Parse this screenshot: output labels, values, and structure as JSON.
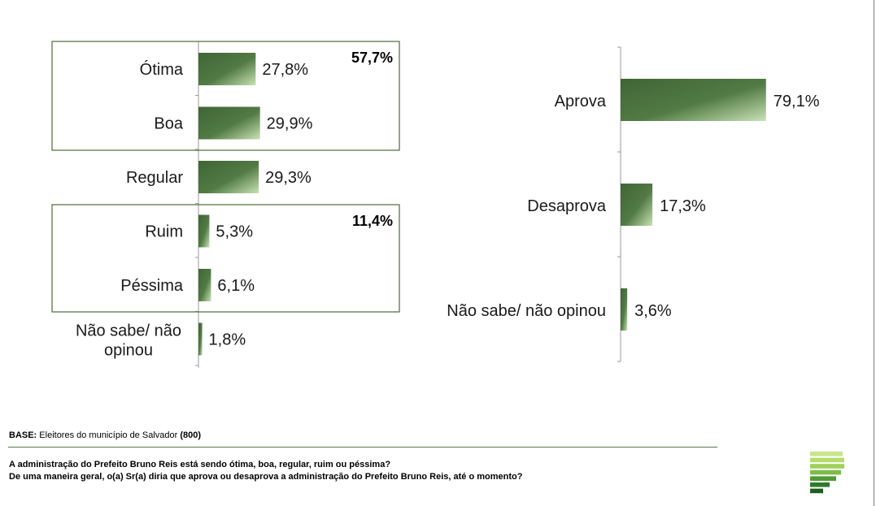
{
  "colors": {
    "bar_dark": "#3f6535",
    "bar_light": "#c8e3b4",
    "box_border": "#4d6b3a",
    "rule": "#5a7a4a",
    "logo_bars": [
      "#c8e58a",
      "#b6dc6e",
      "#9fd05a",
      "#7cbd48",
      "#4f9a35",
      "#2f7a2a",
      "#1f5d20"
    ]
  },
  "chart_data": [
    {
      "type": "bar",
      "orientation": "horizontal",
      "categories": [
        "Ótima",
        "Boa",
        "Regular",
        "Ruim",
        "Péssima",
        "Não sabe/ não opinou"
      ],
      "values": [
        27.8,
        29.9,
        29.3,
        5.3,
        6.1,
        1.8
      ],
      "value_labels": [
        "27,8%",
        "29,9%",
        "29,3%",
        "5,3%",
        "6,1%",
        "1,8%"
      ],
      "groups": [
        {
          "label": "57,7%",
          "members": [
            "Ótima",
            "Boa"
          ]
        },
        {
          "label": "11,4%",
          "members": [
            "Ruim",
            "Péssima"
          ]
        }
      ],
      "xlim": [
        0,
        100
      ],
      "grid": false
    },
    {
      "type": "bar",
      "orientation": "horizontal",
      "categories": [
        "Aprova",
        "Desaprova",
        "Não sabe/ não opinou"
      ],
      "values": [
        79.1,
        17.3,
        3.6
      ],
      "value_labels": [
        "79,1%",
        "17,3%",
        "3,6%"
      ],
      "xlim": [
        0,
        100
      ],
      "grid": false
    }
  ],
  "footer": {
    "base_prefix": "BASE:",
    "base_text": " Eleitores do município de Salvador ",
    "base_count": "(800)",
    "question1": "A administração do Prefeito Bruno Reis está sendo ótima, boa, regular, ruim ou péssima?",
    "question2": "De uma maneira geral, o(a) Sr(a) diria que aprova ou desaprova a administração do Prefeito Bruno Reis, até o momento?"
  },
  "logo": {
    "icon": "logo-bars-icon"
  }
}
